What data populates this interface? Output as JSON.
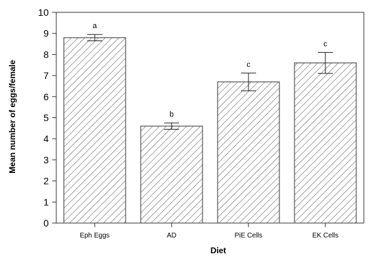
{
  "chart_data": {
    "type": "bar",
    "categories": [
      "Eph Eggs",
      "AD",
      "PiE Cells",
      "EK Cells"
    ],
    "values": [
      8.8,
      4.6,
      6.7,
      7.6
    ],
    "error": [
      0.15,
      0.15,
      0.42,
      0.5
    ],
    "significance": [
      "a",
      "b",
      "c",
      "c"
    ],
    "xlabel": "Diet",
    "ylabel": "Mean number of eggs/female",
    "ylim": [
      0,
      10
    ],
    "yticks": [
      0,
      1,
      2,
      3,
      4,
      5,
      6,
      7,
      8,
      9,
      10
    ],
    "grid": false,
    "bar_fill": "hatched",
    "colors": {
      "bar_stroke": "#555555",
      "hatch": "#6e6e6e",
      "axis": "#333333"
    }
  }
}
